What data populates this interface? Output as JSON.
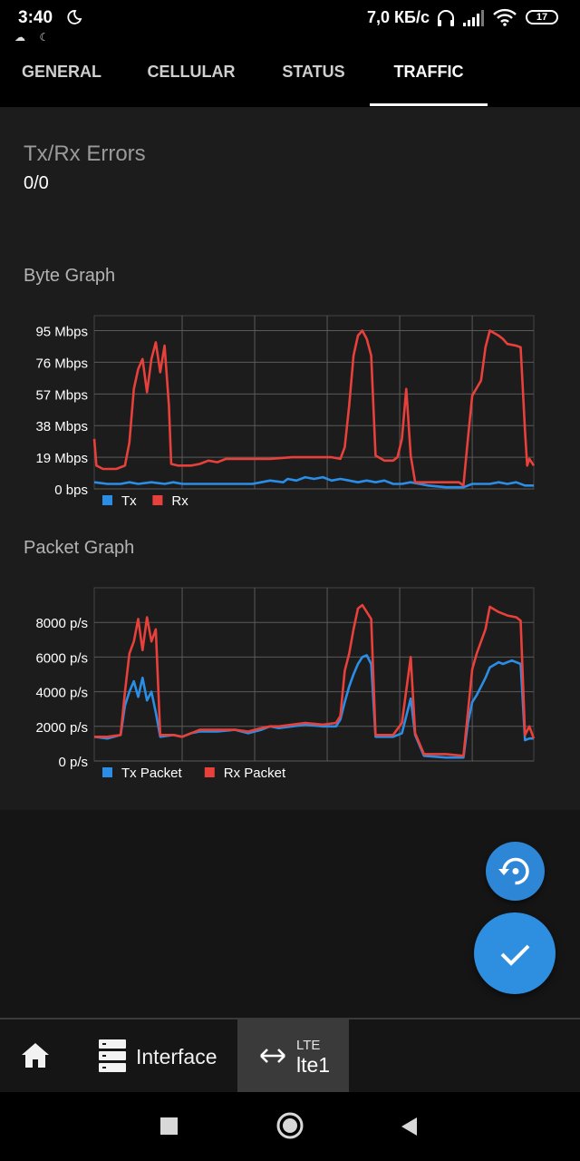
{
  "status_bar": {
    "time": "3:40",
    "notif_icons": "☁ ☾",
    "speed": "7,0 КБ/с",
    "battery": "17",
    "icons": [
      "moon-icon",
      "headphones-icon",
      "signal-icon",
      "wifi-icon",
      "battery-icon"
    ]
  },
  "tabs": [
    {
      "label": "GENERAL",
      "active": false
    },
    {
      "label": "CELLULAR",
      "active": false
    },
    {
      "label": "STATUS",
      "active": false
    },
    {
      "label": "TRAFFIC",
      "active": true
    }
  ],
  "errors": {
    "label": "Tx/Rx Errors",
    "value": "0/0"
  },
  "byte_graph": {
    "title": "Byte Graph"
  },
  "packet_graph": {
    "title": "Packet Graph"
  },
  "colors": {
    "tx": "#2b8ee6",
    "rx": "#e8403a",
    "fab": "#2e8ee0",
    "grid": "#5a5a5a"
  },
  "chart_data": [
    {
      "type": "line",
      "title": "Byte Graph",
      "y_unit": "Mbps",
      "yticks": [
        "0 bps",
        "19 Mbps",
        "38 Mbps",
        "57 Mbps",
        "76 Mbps",
        "95 Mbps"
      ],
      "ylim": [
        0,
        104
      ],
      "xlim": [
        0,
        100
      ],
      "grid": true,
      "legend_position": "bottom-left",
      "series": [
        {
          "name": "Tx",
          "color": "#2b8ee6",
          "points": [
            [
              0,
              4
            ],
            [
              3,
              3
            ],
            [
              6,
              3
            ],
            [
              8,
              4
            ],
            [
              10,
              3
            ],
            [
              13,
              4
            ],
            [
              16,
              3
            ],
            [
              18,
              4
            ],
            [
              20,
              3
            ],
            [
              24,
              3
            ],
            [
              28,
              3
            ],
            [
              32,
              3
            ],
            [
              36,
              3
            ],
            [
              38,
              4
            ],
            [
              40,
              5
            ],
            [
              43,
              4
            ],
            [
              44,
              6
            ],
            [
              46,
              5
            ],
            [
              48,
              7
            ],
            [
              50,
              6
            ],
            [
              52,
              7
            ],
            [
              54,
              5
            ],
            [
              56,
              6
            ],
            [
              58,
              5
            ],
            [
              60,
              4
            ],
            [
              62,
              5
            ],
            [
              64,
              4
            ],
            [
              66,
              5
            ],
            [
              68,
              3
            ],
            [
              70,
              3
            ],
            [
              72,
              4
            ],
            [
              74,
              3
            ],
            [
              76,
              2
            ],
            [
              80,
              1
            ],
            [
              84,
              1
            ],
            [
              86,
              3
            ],
            [
              90,
              3
            ],
            [
              92,
              4
            ],
            [
              94,
              3
            ],
            [
              96,
              4
            ],
            [
              98,
              2
            ],
            [
              100,
              2
            ]
          ]
        },
        {
          "name": "Rx",
          "color": "#e8403a",
          "points": [
            [
              0,
              30
            ],
            [
              0.5,
              14
            ],
            [
              2,
              12
            ],
            [
              5,
              12
            ],
            [
              7,
              14
            ],
            [
              8,
              28
            ],
            [
              9,
              60
            ],
            [
              10,
              72
            ],
            [
              11,
              78
            ],
            [
              12,
              58
            ],
            [
              13,
              78
            ],
            [
              14,
              88
            ],
            [
              15,
              70
            ],
            [
              16,
              86
            ],
            [
              17,
              50
            ],
            [
              17.5,
              15
            ],
            [
              19,
              14
            ],
            [
              22,
              14
            ],
            [
              24,
              15
            ],
            [
              26,
              17
            ],
            [
              28,
              16
            ],
            [
              30,
              18
            ],
            [
              35,
              18
            ],
            [
              40,
              18
            ],
            [
              45,
              19
            ],
            [
              50,
              19
            ],
            [
              54,
              19
            ],
            [
              56,
              18
            ],
            [
              57,
              25
            ],
            [
              58,
              50
            ],
            [
              59,
              80
            ],
            [
              60,
              92
            ],
            [
              61,
              95
            ],
            [
              62,
              90
            ],
            [
              63,
              80
            ],
            [
              64,
              20
            ],
            [
              66,
              17
            ],
            [
              68,
              17
            ],
            [
              69,
              19
            ],
            [
              70,
              30
            ],
            [
              71,
              60
            ],
            [
              72,
              20
            ],
            [
              73,
              4
            ],
            [
              76,
              4
            ],
            [
              80,
              4
            ],
            [
              83,
              4
            ],
            [
              84,
              2
            ],
            [
              85,
              30
            ],
            [
              86,
              56
            ],
            [
              88,
              65
            ],
            [
              89,
              85
            ],
            [
              90,
              95
            ],
            [
              92,
              92
            ],
            [
              93,
              90
            ],
            [
              94,
              87
            ],
            [
              96,
              86
            ],
            [
              97,
              85
            ],
            [
              98,
              35
            ],
            [
              98.5,
              14
            ],
            [
              99,
              18
            ],
            [
              100,
              14
            ]
          ]
        }
      ]
    },
    {
      "type": "line",
      "title": "Packet Graph",
      "y_unit": "p/s",
      "yticks": [
        "0 p/s",
        "2000 p/s",
        "4000 p/s",
        "6000 p/s",
        "8000 p/s"
      ],
      "ylim": [
        0,
        10000
      ],
      "xlim": [
        0,
        100
      ],
      "grid": true,
      "legend_position": "bottom-left",
      "series": [
        {
          "name": "Tx Packet",
          "color": "#2b8ee6",
          "points": [
            [
              0,
              1400
            ],
            [
              3,
              1300
            ],
            [
              6,
              1500
            ],
            [
              7,
              3200
            ],
            [
              8,
              4000
            ],
            [
              9,
              4600
            ],
            [
              10,
              3700
            ],
            [
              11,
              4800
            ],
            [
              12,
              3500
            ],
            [
              13,
              4000
            ],
            [
              14,
              2800
            ],
            [
              15,
              1400
            ],
            [
              18,
              1500
            ],
            [
              20,
              1400
            ],
            [
              22,
              1600
            ],
            [
              24,
              1700
            ],
            [
              28,
              1700
            ],
            [
              32,
              1800
            ],
            [
              35,
              1600
            ],
            [
              38,
              1800
            ],
            [
              40,
              2000
            ],
            [
              42,
              1900
            ],
            [
              45,
              2000
            ],
            [
              48,
              2100
            ],
            [
              52,
              2000
            ],
            [
              55,
              2000
            ],
            [
              56,
              2400
            ],
            [
              57,
              3400
            ],
            [
              58,
              4300
            ],
            [
              59,
              5000
            ],
            [
              60,
              5600
            ],
            [
              61,
              6000
            ],
            [
              62,
              6100
            ],
            [
              63,
              5600
            ],
            [
              64,
              1400
            ],
            [
              66,
              1400
            ],
            [
              68,
              1400
            ],
            [
              70,
              1600
            ],
            [
              72,
              3600
            ],
            [
              73,
              1500
            ],
            [
              75,
              300
            ],
            [
              80,
              200
            ],
            [
              84,
              200
            ],
            [
              85,
              2200
            ],
            [
              86,
              3400
            ],
            [
              87,
              3800
            ],
            [
              89,
              4800
            ],
            [
              90,
              5400
            ],
            [
              92,
              5700
            ],
            [
              93,
              5600
            ],
            [
              95,
              5800
            ],
            [
              97,
              5600
            ],
            [
              98,
              1200
            ],
            [
              99,
              1300
            ],
            [
              100,
              1300
            ]
          ]
        },
        {
          "name": "Rx Packet",
          "color": "#e8403a",
          "points": [
            [
              0,
              1400
            ],
            [
              3,
              1400
            ],
            [
              6,
              1500
            ],
            [
              7,
              4000
            ],
            [
              8,
              6200
            ],
            [
              9,
              6900
            ],
            [
              10,
              8200
            ],
            [
              11,
              6400
            ],
            [
              12,
              8300
            ],
            [
              13,
              6900
            ],
            [
              14,
              7600
            ],
            [
              15,
              1500
            ],
            [
              18,
              1500
            ],
            [
              20,
              1400
            ],
            [
              22,
              1600
            ],
            [
              24,
              1800
            ],
            [
              28,
              1800
            ],
            [
              32,
              1800
            ],
            [
              35,
              1700
            ],
            [
              38,
              1900
            ],
            [
              40,
              2000
            ],
            [
              42,
              2000
            ],
            [
              45,
              2100
            ],
            [
              48,
              2200
            ],
            [
              52,
              2100
            ],
            [
              55,
              2200
            ],
            [
              56,
              2600
            ],
            [
              57,
              5200
            ],
            [
              58,
              6200
            ],
            [
              59,
              7600
            ],
            [
              60,
              8800
            ],
            [
              61,
              9000
            ],
            [
              62,
              8600
            ],
            [
              63,
              8200
            ],
            [
              64,
              1500
            ],
            [
              66,
              1500
            ],
            [
              68,
              1500
            ],
            [
              70,
              2200
            ],
            [
              72,
              6000
            ],
            [
              73,
              1600
            ],
            [
              75,
              400
            ],
            [
              80,
              400
            ],
            [
              84,
              300
            ],
            [
              85,
              2800
            ],
            [
              86,
              5300
            ],
            [
              87,
              6200
            ],
            [
              89,
              7600
            ],
            [
              90,
              8900
            ],
            [
              92,
              8600
            ],
            [
              94,
              8400
            ],
            [
              96,
              8300
            ],
            [
              97,
              8100
            ],
            [
              98,
              1500
            ],
            [
              99,
              2000
            ],
            [
              100,
              1300
            ]
          ]
        }
      ]
    }
  ],
  "bottom_nav": {
    "interface": "Interface",
    "lte_type": "LTE",
    "lte_name": "lte1"
  }
}
